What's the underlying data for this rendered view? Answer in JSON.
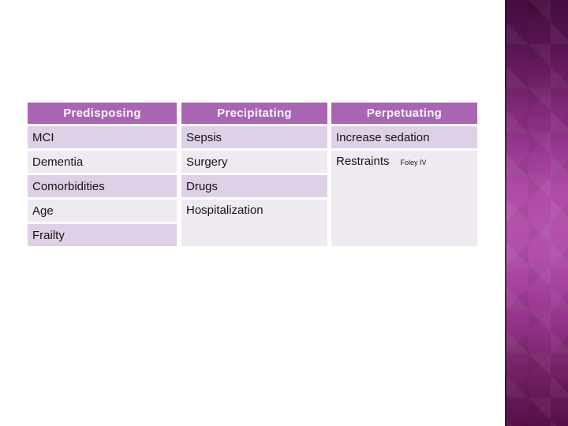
{
  "slide": {
    "table": {
      "columns": [
        {
          "header": "Predisposing",
          "rows": [
            {
              "text": "MCI"
            },
            {
              "text": "Dementia"
            },
            {
              "text": "Comorbidities"
            },
            {
              "text": "Age"
            },
            {
              "text": "Frailty"
            }
          ]
        },
        {
          "header": "Precipitating",
          "rows": [
            {
              "text": "Sepsis"
            },
            {
              "text": "Surgery"
            },
            {
              "text": "Drugs"
            },
            {
              "text": "Hospitalization"
            }
          ]
        },
        {
          "header": "Perpetuating",
          "rows": [
            {
              "text": "Increase sedation"
            },
            {
              "text": "Restraints",
              "note": "Foley IV"
            }
          ]
        }
      ]
    }
  },
  "colors": {
    "header_bg": "#aa64b4",
    "header_text": "#fbf7fc",
    "row_dark": "#ded0e6",
    "row_light": "#efe9f2",
    "cell_text": "#141414",
    "sidebar_top": "#440c3e",
    "sidebar_mid": "#b551ad",
    "sidebar_bottom": "#551048"
  }
}
